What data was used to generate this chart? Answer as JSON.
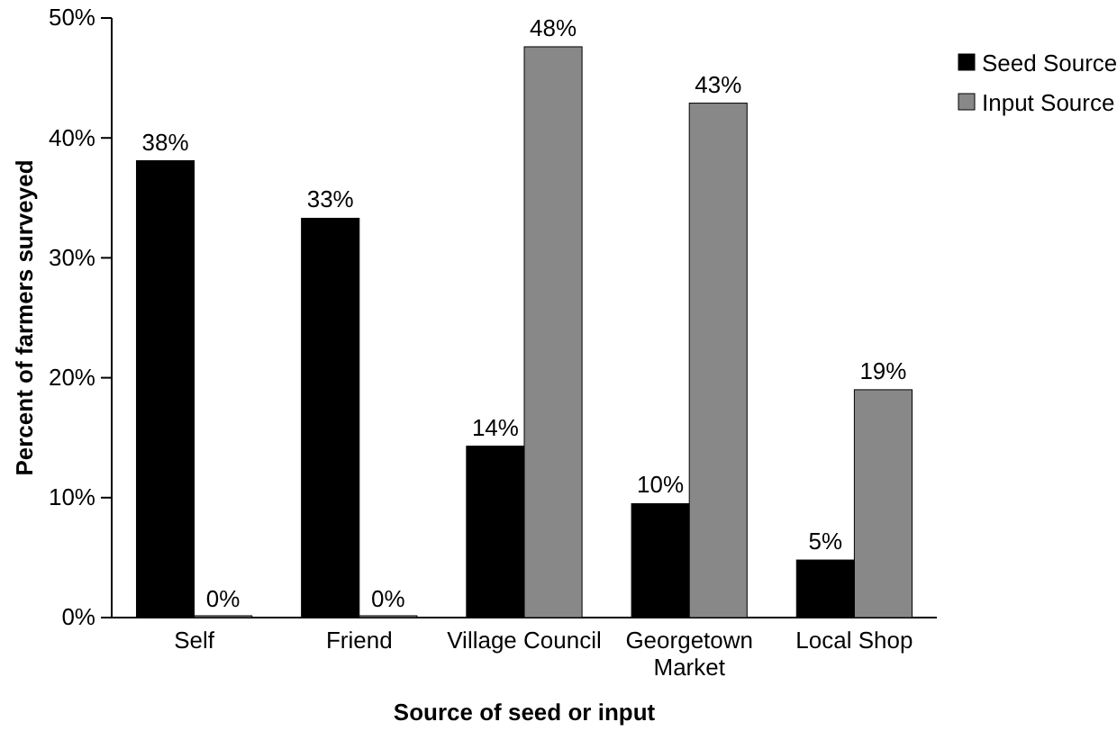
{
  "chart_data": {
    "type": "bar",
    "xlabel": "Source of seed or input",
    "ylabel": "Percent of farmers surveyed",
    "categories": [
      "Self",
      "Friend",
      "Village Council",
      "Georgetown Market",
      "Local Shop"
    ],
    "series": [
      {
        "name": "Seed Source",
        "color": "#000000",
        "values": [
          38.1,
          33.3,
          14.3,
          9.5,
          4.8
        ],
        "value_labels": [
          "38%",
          "33%",
          "14%",
          "10%",
          "5%"
        ]
      },
      {
        "name": "Input Source",
        "color": "#888888",
        "values": [
          0,
          0,
          47.6,
          42.9,
          19.0
        ],
        "value_labels": [
          "0%",
          "0%",
          "48%",
          "43%",
          "19%"
        ]
      }
    ],
    "ylim": [
      0,
      50
    ],
    "yticks": [
      {
        "value": 0,
        "label": "0%"
      },
      {
        "value": 10,
        "label": "10%"
      },
      {
        "value": 20,
        "label": "20%"
      },
      {
        "value": 30,
        "label": "30%"
      },
      {
        "value": 40,
        "label": "40%"
      },
      {
        "value": 50,
        "label": "50%"
      }
    ],
    "legend": "top right"
  }
}
